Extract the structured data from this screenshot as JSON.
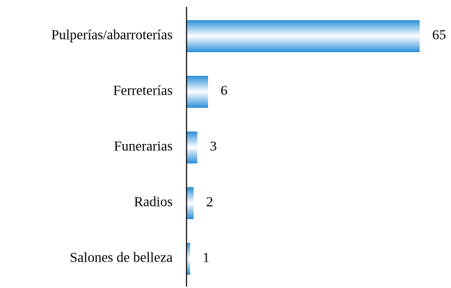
{
  "chart_data": {
    "type": "bar",
    "orientation": "horizontal",
    "categories": [
      "Pulperías/abarroterías",
      "Ferreterías",
      "Funerarias",
      "Radios",
      "Salones de belleza"
    ],
    "values": [
      65,
      6,
      3,
      2,
      1
    ],
    "color": "#2b8fd8"
  }
}
